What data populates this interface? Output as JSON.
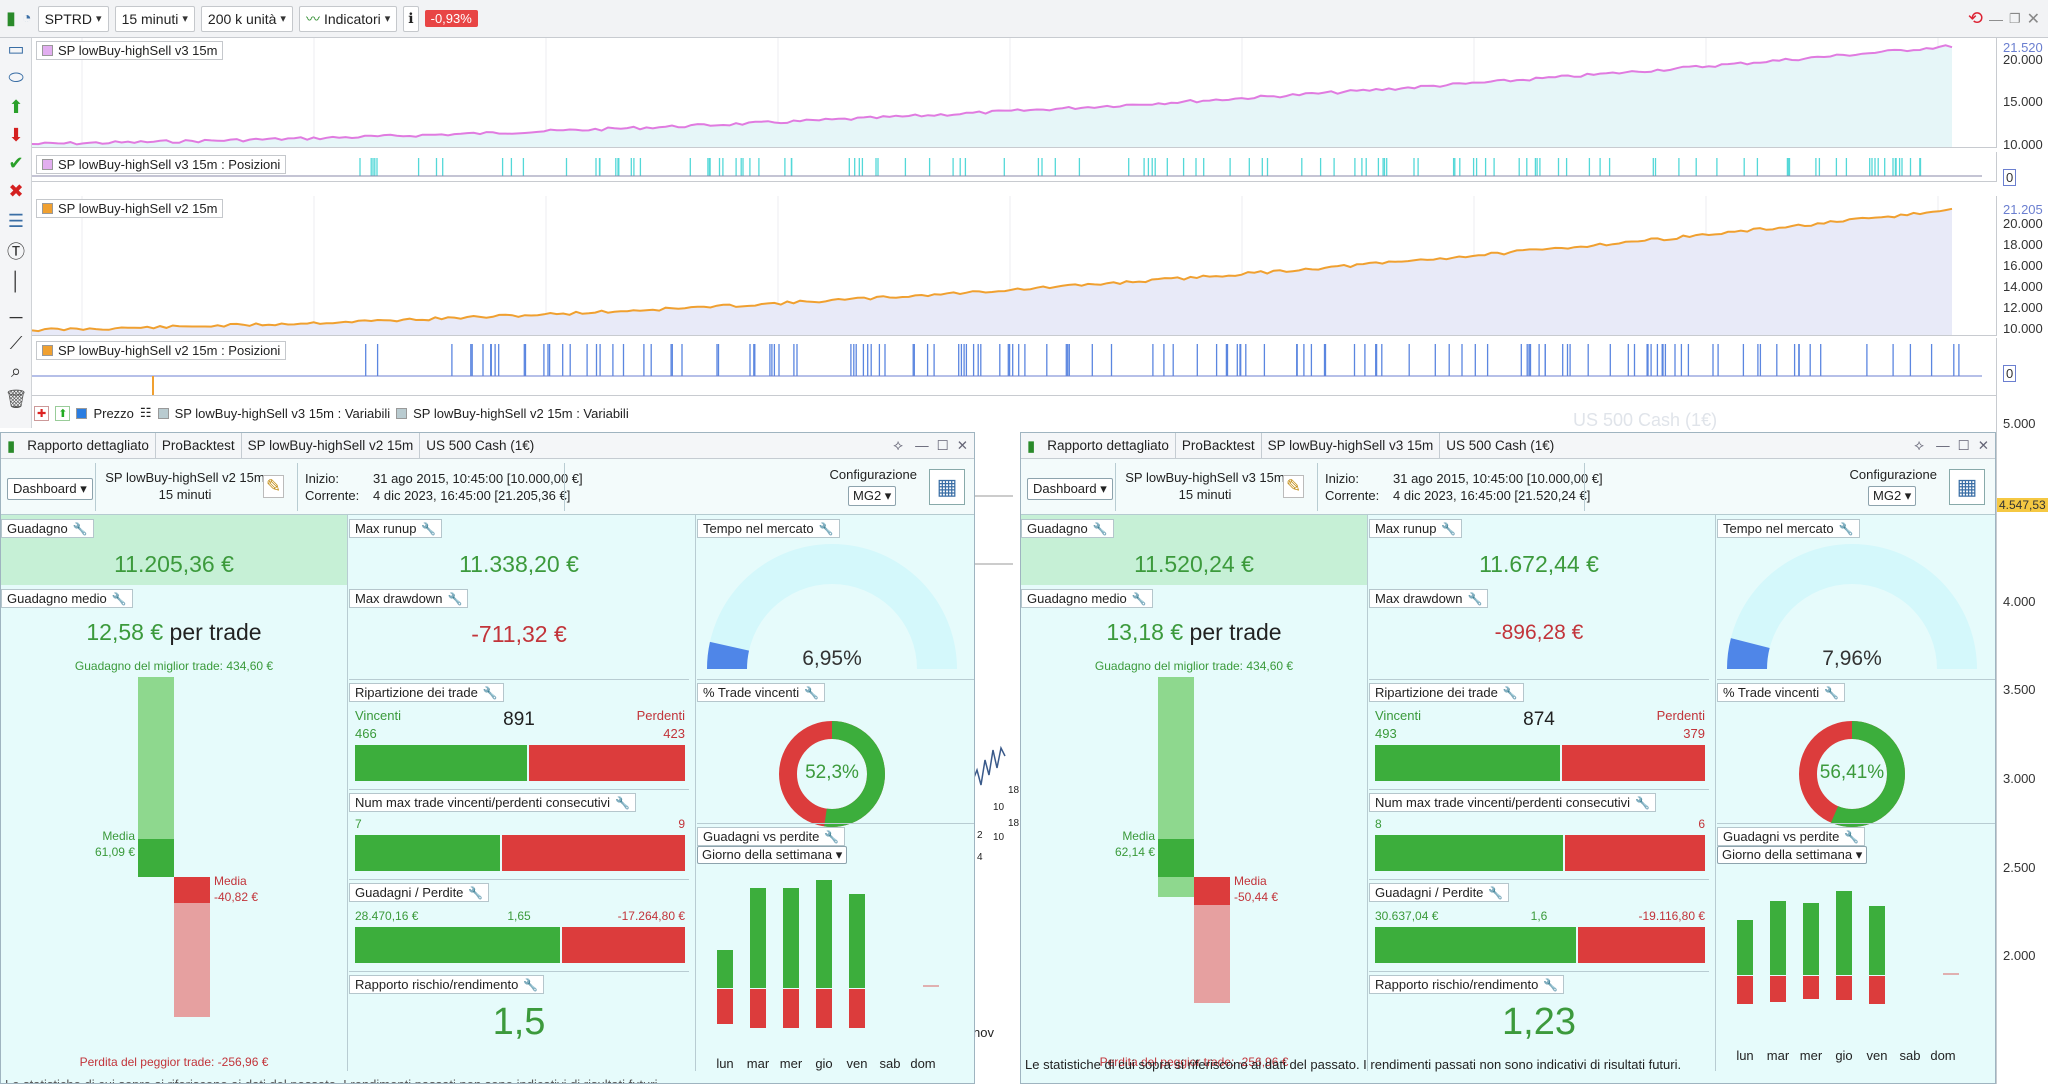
{
  "toolbar": {
    "symbol": "SPTRD",
    "timeframe": "15 minuti",
    "units": "200 k unità",
    "indicators": "Indicatori",
    "change": "-0,93%"
  },
  "panes": {
    "v3": {
      "label": "SP lowBuy-highSell v3 15m",
      "ticks": [
        "21.520",
        "20.000",
        "15.000",
        "10.000"
      ]
    },
    "v3pos": {
      "label": "SP lowBuy-highSell v3 15m : Posizioni",
      "tick": "0"
    },
    "v2": {
      "label": "SP lowBuy-highSell v2 15m",
      "ticks": [
        "21.205",
        "20.000",
        "18.000",
        "16.000",
        "14.000",
        "12.000",
        "10.000"
      ]
    },
    "v2pos": {
      "label": "SP lowBuy-highSell v2 15m : Posizioni",
      "tick": "0"
    },
    "legend": {
      "prezzo": "Prezzo",
      "var3": "SP lowBuy-highSell v3 15m : Variabili",
      "var2": "SP lowBuy-highSell v2 15m : Variabili"
    }
  },
  "bgchart": {
    "watermark": "US 500 Cash (1€)",
    "ticks": [
      "5.000",
      "4.547,53",
      "4.000",
      "3.500",
      "3.000",
      "2.500",
      "2.000"
    ],
    "month": "nov",
    "mini": [
      "18",
      "10",
      "18",
      "2",
      "10",
      "4",
      "10"
    ]
  },
  "windows": {
    "left": {
      "tabs": [
        "Rapporto dettagliato",
        "ProBacktest",
        "SP lowBuy-highSell v2 15m",
        "US 500 Cash (1€)"
      ],
      "dashboard": "Dashboard",
      "system": "SP lowBuy-highSell v2 15m",
      "tf": "15 minuti",
      "inizio_l": "Inizio:",
      "inizio_v": "31 ago 2015, 10:45:00 [10.000,00 €]",
      "corrente_l": "Corrente:",
      "corrente_v": "4 dic 2023, 16:45:00 [21.205,36 €]",
      "config": "Configurazione",
      "mg": "MG2",
      "guadagno_l": "Guadagno",
      "guadagno_v": "11.205,36 €",
      "medio_l": "Guadagno medio",
      "medio_v": "12,58 €",
      "per_trade": "per trade",
      "best": "Guadagno del miglior trade: 434,60 €",
      "worst": "Perdita del peggior trade: -256,96 €",
      "media_g_l": "Media",
      "media_g_v": "61,09 €",
      "media_r_l": "Media",
      "media_r_v": "-40,82 €",
      "runup_l": "Max runup",
      "runup_v": "11.338,20 €",
      "dd_l": "Max drawdown",
      "dd_v": "-711,32 €",
      "ripart_l": "Ripartizione dei trade",
      "vinc": "Vincenti",
      "perd": "Perdenti",
      "tot": "891",
      "vinc_n": "466",
      "perd_n": "423",
      "win_frac": 0.52,
      "consec_l": "Num max trade vincenti/perdenti consecutivi",
      "consec_w": "7",
      "consec_r": "9",
      "consec_frac": 0.44,
      "gp_l": "Guadagni / Perdite",
      "gp_w": "28.470,16 €",
      "gp_ratio": "1,65",
      "gp_r": "-17.264,80 €",
      "gp_frac": 0.62,
      "rr_l": "Rapporto rischio/rendimento",
      "rr_v": "1,5",
      "tm_l": "Tempo nel mercato",
      "tm_v": "6,95%",
      "tm_frac": 0.0695,
      "pct_l": "% Trade vincenti",
      "pct_v": "52,3%",
      "pct_frac": 0.523,
      "gvp_l": "Guadagni vs perdite",
      "gvp_sel": "Giorno della settimana",
      "days": [
        "lun",
        "mar",
        "mer",
        "gio",
        "ven",
        "sab",
        "dom"
      ],
      "day_pos": [
        0.35,
        0.93,
        0.93,
        1.0,
        0.87,
        0,
        0
      ],
      "day_neg": [
        0.6,
        0.67,
        0.67,
        0.67,
        0.67,
        0,
        0
      ],
      "footer": "Le statistiche di cui sopra si riferiscono ai dati del passato. I rendimenti passati non sono indicativi di risultati futuri."
    },
    "right": {
      "tabs": [
        "Rapporto dettagliato",
        "ProBacktest",
        "SP lowBuy-highSell v3 15m",
        "US 500 Cash (1€)"
      ],
      "dashboard": "Dashboard",
      "system": "SP lowBuy-highSell v3 15m",
      "tf": "15 minuti",
      "inizio_l": "Inizio:",
      "inizio_v": "31 ago 2015, 10:45:00 [10.000,00 €]",
      "corrente_l": "Corrente:",
      "corrente_v": "4 dic 2023, 16:45:00 [21.520,24 €]",
      "config": "Configurazione",
      "mg": "MG2",
      "guadagno_l": "Guadagno",
      "guadagno_v": "11.520,24 €",
      "medio_l": "Guadagno medio",
      "medio_v": "13,18 €",
      "per_trade": "per trade",
      "best": "Guadagno del miglior trade: 434,60 €",
      "worst": "Perdita del peggior trade: -256,96 €",
      "media_g_l": "Media",
      "media_g_v": "62,14 €",
      "media_r_l": "Media",
      "media_r_v": "-50,44 €",
      "runup_l": "Max runup",
      "runup_v": "11.672,44 €",
      "dd_l": "Max drawdown",
      "dd_v": "-896,28 €",
      "ripart_l": "Ripartizione dei trade",
      "vinc": "Vincenti",
      "perd": "Perdenti",
      "tot": "874",
      "vinc_n": "493",
      "perd_n": "379",
      "win_frac": 0.56,
      "consec_l": "Num max trade vincenti/perdenti consecutivi",
      "consec_w": "8",
      "consec_r": "6",
      "consec_frac": 0.57,
      "gp_l": "Guadagni / Perdite",
      "gp_w": "30.637,04 €",
      "gp_ratio": "1,6",
      "gp_r": "-19.116,80 €",
      "gp_frac": 0.61,
      "rr_l": "Rapporto rischio/rendimento",
      "rr_v": "1,23",
      "tm_l": "Tempo nel mercato",
      "tm_v": "7,96%",
      "tm_frac": 0.0796,
      "pct_l": "% Trade vincenti",
      "pct_v": "56,41%",
      "pct_frac": 0.5641,
      "gvp_l": "Guadagni vs perdite",
      "gvp_sel": "Giorno della settimana",
      "days": [
        "lun",
        "mar",
        "mer",
        "gio",
        "ven",
        "sab",
        "dom"
      ],
      "day_pos": [
        0.58,
        0.78,
        0.76,
        0.88,
        0.73,
        0,
        0
      ],
      "day_neg": [
        0.48,
        0.44,
        0.4,
        0.42,
        0.48,
        0,
        0
      ],
      "footer": "Le statistiche di cui sopra si riferiscono ai dati del passato. I rendimenti passati non sono indicativi di risultati futuri."
    }
  },
  "colors": {
    "v3_line": "#e07be0",
    "v2_line": "#f0a030",
    "v2_fill": "#e8eaf8",
    "v3_fill": "#e6f6f8",
    "green": "#3cae3c",
    "red": "#dc3c3c",
    "ring_bg": "#d4f8fb"
  }
}
